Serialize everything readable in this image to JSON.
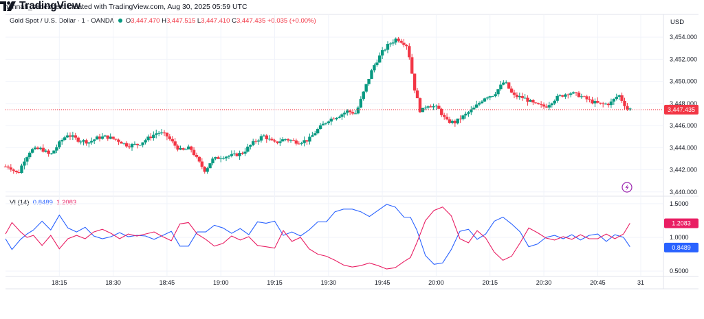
{
  "credit": "hannah_seoexpertt created with TradingView.com, Aug 30, 2025 05:59 UTC",
  "legend": {
    "symbol": "Gold Spot / U.S. Dollar · 1 · OANDA",
    "o_label": "O",
    "o": "3,447.470",
    "h_label": "H",
    "h": "3,447.515",
    "l_label": "L",
    "l": "3,447.410",
    "c_label": "C",
    "c": "3,447.435",
    "change": "+0.035 (+0.00%)"
  },
  "currency": "USD",
  "vi_legend": {
    "name": "VI (14)",
    "plus": "0.8489",
    "minus": "1.2083"
  },
  "logo_text": "TradingView",
  "colors": {
    "up": "#089981",
    "down": "#f23645",
    "vi_plus": "#2962ff",
    "vi_minus": "#e91e63",
    "grid": "#f0f3fa",
    "last_price_line": "#f23645"
  },
  "chart_data": [
    {
      "type": "candlestick",
      "title": "Gold Spot / U.S. Dollar · 1 · OANDA",
      "y_axis_ticks": [
        "3,440.000",
        "3,442.000",
        "3,444.000",
        "3,446.000",
        "3,448.000",
        "3,450.000",
        "3,452.000",
        "3,454.000"
      ],
      "ylim": [
        3439.8,
        3455.0
      ],
      "x_axis_ticks": [
        "18:15",
        "18:30",
        "18:45",
        "19:00",
        "19:15",
        "19:30",
        "19:45",
        "20:00",
        "20:15",
        "20:30",
        "20:45",
        "31"
      ],
      "last_price": 3447.435,
      "last_price_label": "3,447.435",
      "close_path": [
        [
          18.03,
          3442.3
        ],
        [
          18.07,
          3441.6
        ],
        [
          18.1,
          3442.9
        ],
        [
          18.13,
          3443.8
        ],
        [
          18.18,
          3443.9
        ],
        [
          18.22,
          3443.3
        ],
        [
          18.27,
          3444.6
        ],
        [
          18.3,
          3445.2
        ],
        [
          18.35,
          3444.7
        ],
        [
          18.4,
          3444.5
        ],
        [
          18.44,
          3444.9
        ],
        [
          18.48,
          3445.0
        ],
        [
          18.53,
          3444.7
        ],
        [
          18.58,
          3444.2
        ],
        [
          18.63,
          3444.3
        ],
        [
          18.67,
          3444.8
        ],
        [
          18.72,
          3445.4
        ],
        [
          18.76,
          3445.1
        ],
        [
          18.8,
          3444.2
        ],
        [
          18.83,
          3443.7
        ],
        [
          18.87,
          3444.0
        ],
        [
          18.91,
          3442.7
        ],
        [
          18.94,
          3441.9
        ],
        [
          18.97,
          3442.9
        ],
        [
          19.02,
          3443.2
        ],
        [
          19.07,
          3443.3
        ],
        [
          19.11,
          3443.5
        ],
        [
          19.16,
          3444.4
        ],
        [
          19.21,
          3445.1
        ],
        [
          19.26,
          3444.4
        ],
        [
          19.31,
          3444.8
        ],
        [
          19.37,
          3444.5
        ],
        [
          19.42,
          3444.7
        ],
        [
          19.46,
          3445.6
        ],
        [
          19.51,
          3446.5
        ],
        [
          19.56,
          3446.9
        ],
        [
          19.6,
          3447.3
        ],
        [
          19.64,
          3447.1
        ],
        [
          19.69,
          3449.8
        ],
        [
          19.72,
          3451.3
        ],
        [
          19.76,
          3452.6
        ],
        [
          19.79,
          3453.3
        ],
        [
          19.83,
          3453.9
        ],
        [
          19.86,
          3453.5
        ],
        [
          19.88,
          3453.2
        ],
        [
          19.91,
          3449.5
        ],
        [
          19.94,
          3447.2
        ],
        [
          19.97,
          3447.9
        ],
        [
          20.02,
          3447.6
        ],
        [
          20.06,
          3446.4
        ],
        [
          20.1,
          3446.3
        ],
        [
          20.15,
          3447.0
        ],
        [
          20.19,
          3447.6
        ],
        [
          20.24,
          3448.6
        ],
        [
          20.28,
          3448.8
        ],
        [
          20.33,
          3450.0
        ],
        [
          20.37,
          3448.7
        ],
        [
          20.42,
          3448.5
        ],
        [
          20.47,
          3447.9
        ],
        [
          20.52,
          3447.7
        ],
        [
          20.57,
          3448.5
        ],
        [
          20.63,
          3449.0
        ],
        [
          20.68,
          3448.7
        ],
        [
          20.73,
          3448.2
        ],
        [
          20.78,
          3447.9
        ],
        [
          20.82,
          3448.0
        ],
        [
          20.86,
          3448.8
        ],
        [
          20.9,
          3447.5
        ]
      ]
    },
    {
      "type": "line",
      "title": "VI (14)",
      "y_axis_ticks": [
        "0.5000",
        "1.0000",
        "1.5000"
      ],
      "ylim": [
        0.45,
        1.55
      ],
      "series": [
        {
          "name": "VI+",
          "last_value": 0.8489,
          "last_label": "0.8489",
          "points": [
            [
              18.0,
              0.98
            ],
            [
              18.03,
              0.82
            ],
            [
              18.07,
              0.97
            ],
            [
              18.1,
              1.05
            ],
            [
              18.13,
              1.11
            ],
            [
              18.17,
              1.24
            ],
            [
              18.21,
              1.11
            ],
            [
              18.25,
              1.33
            ],
            [
              18.29,
              1.14
            ],
            [
              18.33,
              1.08
            ],
            [
              18.37,
              1.15
            ],
            [
              18.41,
              1.02
            ],
            [
              18.45,
              0.98
            ],
            [
              18.49,
              1.01
            ],
            [
              18.53,
              1.07
            ],
            [
              18.57,
              1.01
            ],
            [
              18.61,
              1.03
            ],
            [
              18.65,
              1.02
            ],
            [
              18.69,
              0.97
            ],
            [
              18.73,
              1.03
            ],
            [
              18.77,
              1.09
            ],
            [
              18.81,
              0.87
            ],
            [
              18.85,
              0.87
            ],
            [
              18.89,
              1.08
            ],
            [
              18.93,
              1.08
            ],
            [
              18.97,
              1.18
            ],
            [
              19.01,
              1.14
            ],
            [
              19.05,
              1.06
            ],
            [
              19.09,
              1.13
            ],
            [
              19.13,
              1.04
            ],
            [
              19.17,
              1.23
            ],
            [
              19.21,
              1.21
            ],
            [
              19.25,
              1.24
            ],
            [
              19.29,
              1.03
            ],
            [
              19.33,
              1.08
            ],
            [
              19.37,
              1.02
            ],
            [
              19.41,
              1.11
            ],
            [
              19.45,
              1.23
            ],
            [
              19.49,
              1.23
            ],
            [
              19.53,
              1.38
            ],
            [
              19.57,
              1.42
            ],
            [
              19.61,
              1.42
            ],
            [
              19.65,
              1.38
            ],
            [
              19.69,
              1.31
            ],
            [
              19.73,
              1.4
            ],
            [
              19.77,
              1.49
            ],
            [
              19.81,
              1.45
            ],
            [
              19.85,
              1.3
            ],
            [
              19.88,
              1.3
            ],
            [
              19.91,
              1.11
            ],
            [
              19.95,
              0.73
            ],
            [
              19.99,
              0.6
            ],
            [
              20.03,
              0.62
            ],
            [
              20.07,
              0.82
            ],
            [
              20.11,
              1.09
            ],
            [
              20.15,
              1.12
            ],
            [
              20.19,
              0.97
            ],
            [
              20.23,
              1.05
            ],
            [
              20.27,
              1.24
            ],
            [
              20.31,
              1.3
            ],
            [
              20.35,
              1.2
            ],
            [
              20.39,
              1.08
            ],
            [
              20.43,
              0.86
            ],
            [
              20.47,
              0.9
            ],
            [
              20.51,
              1.0
            ],
            [
              20.55,
              1.03
            ],
            [
              20.59,
              0.98
            ],
            [
              20.63,
              1.04
            ],
            [
              20.67,
              0.96
            ],
            [
              20.71,
              1.03
            ],
            [
              20.75,
              1.05
            ],
            [
              20.79,
              0.94
            ],
            [
              20.83,
              1.04
            ],
            [
              20.87,
              1.0
            ],
            [
              20.9,
              0.86
            ]
          ]
        },
        {
          "name": "VI-",
          "last_value": 1.2083,
          "last_label": "1.2083",
          "points": [
            [
              18.0,
              1.05
            ],
            [
              18.03,
              1.22
            ],
            [
              18.07,
              1.08
            ],
            [
              18.1,
              1.0
            ],
            [
              18.13,
              1.03
            ],
            [
              18.17,
              0.88
            ],
            [
              18.21,
              1.03
            ],
            [
              18.25,
              0.83
            ],
            [
              18.29,
              0.98
            ],
            [
              18.33,
              1.03
            ],
            [
              18.37,
              0.98
            ],
            [
              18.41,
              1.08
            ],
            [
              18.45,
              1.12
            ],
            [
              18.49,
              1.06
            ],
            [
              18.53,
              0.98
            ],
            [
              18.57,
              1.05
            ],
            [
              18.61,
              1.02
            ],
            [
              18.65,
              1.05
            ],
            [
              18.69,
              1.08
            ],
            [
              18.73,
              1.01
            ],
            [
              18.77,
              0.95
            ],
            [
              18.81,
              1.2
            ],
            [
              18.85,
              1.22
            ],
            [
              18.89,
              1.05
            ],
            [
              18.93,
              0.97
            ],
            [
              18.97,
              0.87
            ],
            [
              19.01,
              0.91
            ],
            [
              19.05,
              1.02
            ],
            [
              19.09,
              0.96
            ],
            [
              19.13,
              1.01
            ],
            [
              19.17,
              0.88
            ],
            [
              19.21,
              0.86
            ],
            [
              19.25,
              0.84
            ],
            [
              19.29,
              1.1
            ],
            [
              19.33,
              0.94
            ],
            [
              19.37,
              1.0
            ],
            [
              19.41,
              0.83
            ],
            [
              19.45,
              0.75
            ],
            [
              19.49,
              0.72
            ],
            [
              19.53,
              0.66
            ],
            [
              19.57,
              0.59
            ],
            [
              19.61,
              0.56
            ],
            [
              19.65,
              0.58
            ],
            [
              19.69,
              0.62
            ],
            [
              19.73,
              0.58
            ],
            [
              19.77,
              0.53
            ],
            [
              19.81,
              0.55
            ],
            [
              19.85,
              0.64
            ],
            [
              19.88,
              0.7
            ],
            [
              19.91,
              0.92
            ],
            [
              19.95,
              1.25
            ],
            [
              19.99,
              1.4
            ],
            [
              20.03,
              1.45
            ],
            [
              20.07,
              1.32
            ],
            [
              20.11,
              0.98
            ],
            [
              20.15,
              0.92
            ],
            [
              20.19,
              1.1
            ],
            [
              20.23,
              0.99
            ],
            [
              20.27,
              0.78
            ],
            [
              20.31,
              0.66
            ],
            [
              20.35,
              0.72
            ],
            [
              20.39,
              0.92
            ],
            [
              20.43,
              1.14
            ],
            [
              20.47,
              1.07
            ],
            [
              20.51,
              0.99
            ],
            [
              20.55,
              0.96
            ],
            [
              20.59,
              1.01
            ],
            [
              20.63,
              0.97
            ],
            [
              20.67,
              1.04
            ],
            [
              20.71,
              0.98
            ],
            [
              20.75,
              0.98
            ],
            [
              20.79,
              1.05
            ],
            [
              20.83,
              0.98
            ],
            [
              20.87,
              1.05
            ],
            [
              20.9,
              1.21
            ]
          ]
        }
      ]
    }
  ]
}
